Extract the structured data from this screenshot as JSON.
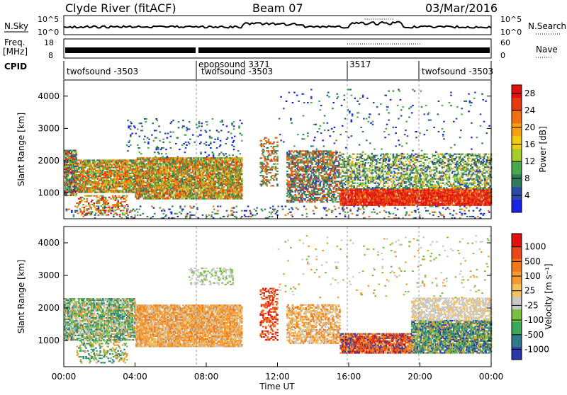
{
  "header": {
    "station": "Clyde River (fitACF)",
    "beam": "Beam 07",
    "date": "03/Mar/2016"
  },
  "top_panels": {
    "nsky": {
      "label": "N.Sky",
      "ticks_left": [
        "10^5",
        "10^0"
      ],
      "ticks_right": [
        "10^5",
        "10^0"
      ],
      "right_label": "N.Search"
    },
    "freq": {
      "label_line1": "Freq.",
      "label_line2": "[MHz]",
      "ticks_left": [
        "18",
        "8"
      ],
      "ticks_right": [
        "60",
        "0"
      ],
      "right_label": "Nave"
    },
    "cpid": {
      "label": "CPID",
      "segments": [
        {
          "text": "twofsound -3503",
          "start_h": 0.0
        },
        {
          "text": "epopsound 3371",
          "start_h": 7.5
        },
        {
          "text": "twofsound -3503",
          "start_h": 7.5,
          "row": 2
        },
        {
          "text": "3517",
          "start_h": 15.9
        },
        {
          "text": "twofsound -3503",
          "start_h": 19.9
        }
      ],
      "boundaries_h": [
        7.5,
        15.9,
        19.9
      ]
    }
  },
  "chart_data": [
    {
      "type": "heatmap",
      "title": "",
      "xlabel": "",
      "ylabel": "Slant Range [km]",
      "xlim": [
        0,
        24
      ],
      "ylim": [
        200,
        4500
      ],
      "y_ticks": [
        1000,
        2000,
        3000,
        4000
      ],
      "colorbar": {
        "label": "Power [dB]",
        "ticks": [
          4,
          8,
          12,
          16,
          20,
          24,
          28
        ],
        "range": [
          0,
          30
        ],
        "colors": [
          "#1a22e8",
          "#2a4aa8",
          "#2f7a5a",
          "#4aa84a",
          "#a8cc2a",
          "#f0cc10",
          "#f6a010",
          "#f07010",
          "#e83a10",
          "#e01010"
        ]
      }
    },
    {
      "type": "heatmap",
      "title": "",
      "xlabel": "Time UT",
      "ylabel": "Slant Range [km]",
      "xlim": [
        0,
        24
      ],
      "ylim": [
        200,
        4500
      ],
      "y_ticks": [
        1000,
        2000,
        3000,
        4000
      ],
      "x_ticks": [
        "00:00",
        "04:00",
        "08:00",
        "12:00",
        "16:00",
        "20:00",
        "00:00"
      ],
      "colorbar": {
        "label": "Velocity [m s⁻¹]",
        "ticks": [
          "1000",
          "500",
          "100",
          "25",
          "-25",
          "-100",
          "-500",
          "-1000"
        ],
        "colors": [
          "#2a3aa8",
          "#2f7a8a",
          "#3aa85a",
          "#7ac040",
          "#c8c8c8",
          "#f4c060",
          "#f49a30",
          "#f07818",
          "#e84818",
          "#e01010"
        ]
      }
    }
  ],
  "scatter_regions": {
    "power": [
      {
        "t0": 0.0,
        "t1": 0.7,
        "r0": 900,
        "r1": 2300,
        "colors": [
          "#4aa84a",
          "#f07010",
          "#e01010",
          "#a8cc2a",
          "#2f7a5a",
          "#2a4aa8"
        ],
        "dens": 0.7
      },
      {
        "t0": 0.7,
        "t1": 4.0,
        "r0": 1000,
        "r1": 2000,
        "colors": [
          "#2f7a5a",
          "#4aa84a",
          "#f07010",
          "#e83a10",
          "#a8cc2a",
          "#f6a010"
        ],
        "dens": 0.65
      },
      {
        "t0": 0.7,
        "t1": 3.5,
        "r0": 300,
        "r1": 900,
        "colors": [
          "#f07010",
          "#e01010",
          "#f6a010",
          "#4aa84a"
        ],
        "dens": 0.25
      },
      {
        "t0": 4.0,
        "t1": 10.0,
        "r0": 800,
        "r1": 2100,
        "colors": [
          "#e83a10",
          "#f07010",
          "#f6a010",
          "#4aa84a",
          "#2f7a5a",
          "#a8cc2a"
        ],
        "dens": 0.7
      },
      {
        "t0": 3.5,
        "t1": 10.0,
        "r0": 2100,
        "r1": 3300,
        "colors": [
          "#2a4aa8",
          "#2f7a5a",
          "#4aa84a",
          "#1a22e8"
        ],
        "dens": 0.05
      },
      {
        "t0": 11.0,
        "t1": 12.0,
        "r0": 1200,
        "r1": 2700,
        "colors": [
          "#e83a10",
          "#f07010",
          "#4aa84a",
          "#2f7a5a"
        ],
        "dens": 0.25
      },
      {
        "t0": 12.5,
        "t1": 15.5,
        "r0": 700,
        "r1": 2300,
        "colors": [
          "#2f7a5a",
          "#4aa84a",
          "#f07010",
          "#e83a10",
          "#2a4aa8"
        ],
        "dens": 0.45
      },
      {
        "t0": 15.5,
        "t1": 24.0,
        "r0": 600,
        "r1": 1100,
        "colors": [
          "#e01010",
          "#e83a10",
          "#f07010",
          "#e01010"
        ],
        "dens": 0.8
      },
      {
        "t0": 15.5,
        "t1": 24.0,
        "r0": 1100,
        "r1": 2200,
        "colors": [
          "#4aa84a",
          "#2f7a5a",
          "#a8cc2a",
          "#f6a010",
          "#2a4aa8"
        ],
        "dens": 0.35
      },
      {
        "t0": 12.0,
        "t1": 24.0,
        "r0": 2200,
        "r1": 4200,
        "colors": [
          "#2a4aa8",
          "#2f7a5a",
          "#4aa84a",
          "#1a22e8"
        ],
        "dens": 0.02
      },
      {
        "t0": 0.0,
        "t1": 24.0,
        "r0": 200,
        "r1": 600,
        "colors": [
          "#1a22e8",
          "#2a4aa8",
          "#4aa84a",
          "#f07010",
          "#2f7a5a"
        ],
        "dens": 0.08
      }
    ],
    "velocity": [
      {
        "t0": 0.0,
        "t1": 4.0,
        "r0": 1000,
        "r1": 2300,
        "colors": [
          "#7ac040",
          "#3aa85a",
          "#2f7a8a",
          "#f49a30",
          "#c8c8c8"
        ],
        "dens": 0.6
      },
      {
        "t0": 0.7,
        "t1": 3.5,
        "r0": 300,
        "r1": 1000,
        "colors": [
          "#3aa85a",
          "#7ac040",
          "#2f7a8a",
          "#f49a30"
        ],
        "dens": 0.2
      },
      {
        "t0": 4.0,
        "t1": 10.0,
        "r0": 800,
        "r1": 2100,
        "colors": [
          "#f49a30",
          "#f07818",
          "#f4c060",
          "#f49a30",
          "#c8c8c8"
        ],
        "dens": 0.75
      },
      {
        "t0": 7.0,
        "t1": 9.5,
        "r0": 2700,
        "r1": 3200,
        "colors": [
          "#c8c8c8",
          "#c8c8c8",
          "#7ac040"
        ],
        "dens": 0.25
      },
      {
        "t0": 11.0,
        "t1": 12.0,
        "r0": 1000,
        "r1": 2600,
        "colors": [
          "#e84818",
          "#f07818",
          "#e01010"
        ],
        "dens": 0.3
      },
      {
        "t0": 12.5,
        "t1": 15.5,
        "r0": 900,
        "r1": 2100,
        "colors": [
          "#f49a30",
          "#f4c060",
          "#c8c8c8",
          "#f07818"
        ],
        "dens": 0.45
      },
      {
        "t0": 15.5,
        "t1": 19.5,
        "r0": 600,
        "r1": 1200,
        "colors": [
          "#f07818",
          "#e84818",
          "#f49a30",
          "#e01010",
          "#2a3aa8"
        ],
        "dens": 0.75
      },
      {
        "t0": 19.5,
        "t1": 24.0,
        "r0": 600,
        "r1": 1600,
        "colors": [
          "#3aa85a",
          "#2f7a8a",
          "#2a3aa8",
          "#7ac040",
          "#f49a30"
        ],
        "dens": 0.7
      },
      {
        "t0": 19.5,
        "t1": 24.0,
        "r0": 1600,
        "r1": 2300,
        "colors": [
          "#c8c8c8",
          "#c8c8c8",
          "#f4c060"
        ],
        "dens": 0.5
      },
      {
        "t0": 12.0,
        "t1": 24.0,
        "r0": 2300,
        "r1": 4200,
        "colors": [
          "#c8c8c8",
          "#7ac040",
          "#f49a30"
        ],
        "dens": 0.02
      }
    ]
  }
}
